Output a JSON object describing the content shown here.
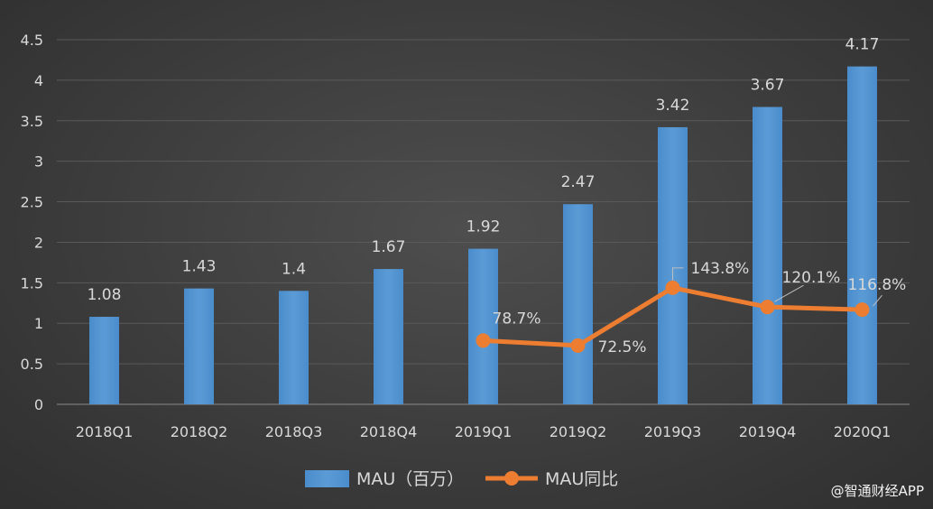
{
  "chart_data": {
    "type": "bar",
    "title": "",
    "categories": [
      "2018Q1",
      "2018Q2",
      "2018Q3",
      "2018Q4",
      "2019Q1",
      "2019Q2",
      "2019Q3",
      "2019Q4",
      "2020Q1"
    ],
    "ylim": [
      0,
      4.5
    ],
    "yticks": [
      "0",
      "0.5",
      "1",
      "1.5",
      "2",
      "2.5",
      "3",
      "3.5",
      "4",
      "4.5"
    ],
    "grid": true,
    "legend_position": "bottom",
    "series": [
      {
        "name": "MAU（百万）",
        "type": "bar",
        "color": "#5b9bd5",
        "values": [
          1.08,
          1.43,
          1.4,
          1.67,
          1.92,
          2.47,
          3.42,
          3.67,
          4.17
        ],
        "labels": [
          "1.08",
          "1.43",
          "1.4",
          "1.67",
          "1.92",
          "2.47",
          "3.42",
          "3.67",
          "4.17"
        ]
      },
      {
        "name": "MAU同比",
        "type": "line",
        "color": "#ed7d31",
        "values": [
          null,
          null,
          null,
          null,
          0.787,
          0.725,
          1.438,
          1.201,
          1.168
        ],
        "labels": [
          "",
          "",
          "",
          "",
          "78.7%",
          "72.5%",
          "143.8%",
          "120.1%",
          "116.8%"
        ]
      }
    ]
  },
  "watermark": "@智通财经APP"
}
